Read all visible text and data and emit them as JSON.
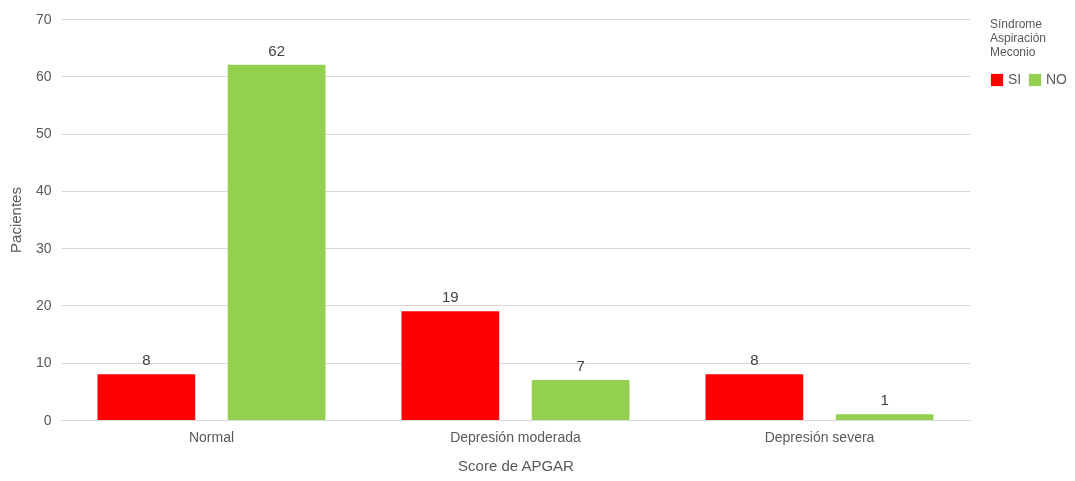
{
  "chart_data": {
    "type": "bar",
    "xlabel": "Score de APGAR",
    "ylabel": "Pacientes",
    "legend_title": "Síndrome Aspiración Meconio",
    "categories": [
      "Normal",
      "Depresión moderada",
      "Depresión severa"
    ],
    "series": [
      {
        "name": "SI",
        "color": "#ff0000",
        "values": [
          8,
          19,
          8
        ]
      },
      {
        "name": "NO",
        "color": "#92d050",
        "values": [
          62,
          7,
          1
        ]
      }
    ],
    "ylim": [
      0,
      70
    ],
    "yticks": [
      0,
      10,
      20,
      30,
      40,
      50,
      60,
      70
    ],
    "grid": "y",
    "legend": "right",
    "data_labels": true
  }
}
